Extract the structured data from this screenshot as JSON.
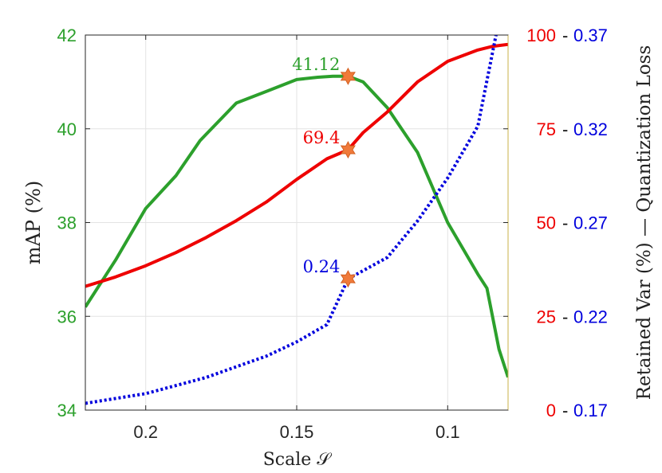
{
  "chart_data": {
    "type": "line",
    "xlabel": "Scale 𝒮",
    "ylabel_left": "mAP (%)",
    "ylabel_right": "Retained Var (%) — Quantization Loss",
    "x_reversed": true,
    "xlim": [
      0.22,
      0.08
    ],
    "x_ticks": [
      0.2,
      0.15,
      0.1
    ],
    "x_tick_labels": [
      "0.2",
      "0.15",
      "0.1"
    ],
    "grid": true,
    "left_axis": {
      "ylim": [
        34,
        42
      ],
      "ticks": [
        34,
        36,
        38,
        40,
        42
      ],
      "tick_labels": [
        "34",
        "36",
        "38",
        "40",
        "42"
      ],
      "color": "#2ca02c"
    },
    "right_axis": {
      "ylim": [
        0,
        100
      ],
      "ticks": [
        0,
        25,
        50,
        75,
        100
      ],
      "tick_labels": [
        "0 - 0.17",
        "25 - 0.22",
        "50 - 0.27",
        "75 - 0.32",
        "100 - 0.37"
      ],
      "primary_labels": [
        "0",
        "25",
        "50",
        "75",
        "100"
      ],
      "secondary_labels": [
        "0.17",
        "0.22",
        "0.27",
        "0.32",
        "0.37"
      ],
      "primary_color": "#ee0000",
      "secondary_color": "#0000dd",
      "secondary_range": [
        0.17,
        0.37
      ]
    },
    "series": [
      {
        "axis": "left",
        "color": "#2ca02c",
        "style": "solid",
        "x": [
          0.22,
          0.21,
          0.2,
          0.19,
          0.182,
          0.17,
          0.16,
          0.15,
          0.143,
          0.138,
          0.133,
          0.128,
          0.12,
          0.11,
          0.1,
          0.09,
          0.087,
          0.083,
          0.08
        ],
        "y": [
          36.2,
          37.2,
          38.3,
          39.0,
          39.75,
          40.55,
          40.8,
          41.05,
          41.1,
          41.12,
          41.12,
          41.0,
          40.45,
          39.5,
          38.0,
          36.9,
          36.6,
          35.3,
          34.7
        ]
      },
      {
        "axis": "right",
        "color": "#ee0000",
        "style": "solid",
        "x": [
          0.22,
          0.21,
          0.2,
          0.19,
          0.18,
          0.17,
          0.16,
          0.15,
          0.14,
          0.133,
          0.128,
          0.12,
          0.11,
          0.1,
          0.09,
          0.085,
          0.08
        ],
        "y": [
          33.0,
          35.5,
          38.5,
          42.0,
          46.0,
          50.5,
          55.5,
          61.5,
          67.0,
          69.4,
          74.0,
          79.5,
          87.5,
          93.0,
          96.0,
          97.0,
          97.5
        ]
      },
      {
        "axis": "right",
        "color": "#0000dd",
        "style": "dotted",
        "secondary_units": true,
        "x": [
          0.22,
          0.2,
          0.18,
          0.16,
          0.15,
          0.14,
          0.133,
          0.12,
          0.11,
          0.1,
          0.09,
          0.084
        ],
        "y": [
          0.1736,
          0.1788,
          0.1874,
          0.1988,
          0.2064,
          0.2156,
          0.24,
          0.2514,
          0.2708,
          0.2938,
          0.3214,
          0.37
        ]
      }
    ],
    "annotations": [
      {
        "text": "41.12",
        "x": 0.133,
        "y": 41.12,
        "axis": "left",
        "color": "#2ca02c",
        "side": "left"
      },
      {
        "text": "69.4",
        "x": 0.133,
        "y": 69.4,
        "axis": "right",
        "color": "#ee0000",
        "side": "left"
      },
      {
        "text": "0.24",
        "x": 0.133,
        "y": 0.24,
        "axis": "right_secondary",
        "color": "#0000dd",
        "side": "left"
      }
    ],
    "marker_color": "#f07a3a"
  }
}
